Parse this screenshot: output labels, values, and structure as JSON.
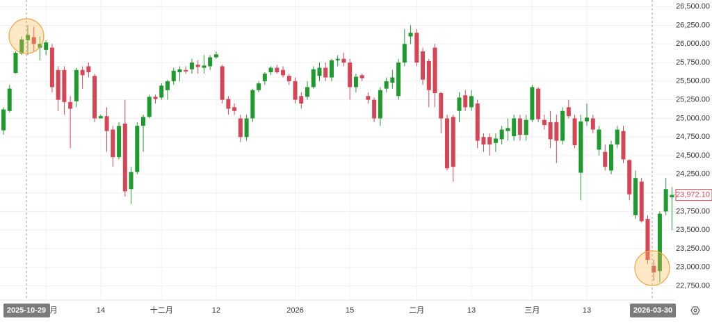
{
  "chart_data": {
    "type": "candlestick",
    "categories": [
      null,
      null,
      null,
      null,
      null,
      null,
      null,
      "十一月",
      null,
      null,
      null,
      null,
      null,
      null,
      null,
      null,
      "14",
      null,
      null,
      null,
      null,
      null,
      null,
      null,
      null,
      null,
      "十二月",
      null,
      null,
      null,
      null,
      null,
      null,
      null,
      null,
      "12",
      null,
      null,
      null,
      null,
      null,
      null,
      null,
      null,
      null,
      null,
      null,
      null,
      "2026",
      null,
      null,
      null,
      null,
      null,
      null,
      null,
      null,
      "15",
      null,
      null,
      null,
      null,
      null,
      null,
      null,
      null,
      null,
      null,
      "二月",
      null,
      null,
      null,
      null,
      null,
      null,
      null,
      null,
      "13",
      null,
      null,
      null,
      null,
      null,
      null,
      null,
      null,
      null,
      "三月",
      null,
      null,
      null,
      null,
      null,
      null,
      null,
      null,
      "13",
      null,
      null,
      null,
      null,
      null,
      null,
      null,
      null,
      null,
      null,
      null,
      null,
      null,
      null
    ],
    "open": [
      24840,
      25100,
      25610,
      25870,
      26050,
      26090,
      25950,
      25920,
      25950,
      25650,
      25650,
      25220,
      25230,
      25650,
      25700,
      25570,
      25000,
      25030,
      24850,
      24480,
      24930,
      24050,
      24280,
      24900,
      25020,
      25290,
      25280,
      25380,
      25500,
      25620,
      25650,
      25660,
      25720,
      25680,
      25700,
      25820,
      25700,
      25260,
      25150,
      25000,
      24750,
      25000,
      25380,
      25500,
      25620,
      25680,
      25650,
      25570,
      25500,
      25300,
      25290,
      25420,
      25570,
      25680,
      25550,
      25780,
      25800,
      25750,
      25420,
      25580,
      25300,
      25250,
      25000,
      25400,
      25480,
      25300,
      25750,
      26100,
      26150,
      25900,
      25770,
      25950,
      25340,
      25000,
      25020,
      25100,
      25310,
      25150,
      25200,
      24750,
      24750,
      24670,
      24720,
      24830,
      24760,
      25000,
      24780,
      24980,
      25400,
      24980,
      24950,
      24950,
      24700,
      25150,
      25000,
      24270,
      24960,
      25000,
      24580,
      24550,
      24300,
      24650,
      24830,
      24440,
      23700,
      24150,
      23650,
      23020,
      22950,
      23750,
      23940
    ],
    "high": [
      25150,
      25450,
      25900,
      26100,
      26250,
      26230,
      26100,
      26050,
      26000,
      25700,
      25700,
      25300,
      25680,
      25700,
      25750,
      25600,
      25050,
      25150,
      24900,
      24950,
      25250,
      24350,
      24950,
      25050,
      25320,
      25320,
      25470,
      25520,
      25680,
      25700,
      25700,
      25800,
      25780,
      25850,
      25850,
      25900,
      25720,
      25300,
      25200,
      25050,
      25050,
      25400,
      25500,
      25620,
      25700,
      25720,
      25700,
      25600,
      25550,
      25350,
      25500,
      25700,
      25750,
      25750,
      25800,
      25850,
      25880,
      25800,
      25600,
      25600,
      25350,
      25280,
      25420,
      25550,
      25650,
      25800,
      26200,
      26250,
      26200,
      25950,
      25800,
      26000,
      25350,
      25050,
      25050,
      25350,
      25380,
      25380,
      25250,
      24800,
      24800,
      24800,
      24900,
      25000,
      25050,
      25050,
      25050,
      25450,
      25420,
      25050,
      25100,
      25050,
      25150,
      25250,
      25050,
      25050,
      25200,
      25050,
      24900,
      24650,
      24700,
      24900,
      24900,
      24450,
      24300,
      24200,
      23700,
      23100,
      23750,
      24200,
      24080
    ],
    "low": [
      24780,
      25080,
      25600,
      25850,
      25850,
      25900,
      25780,
      25850,
      25350,
      25100,
      25050,
      24600,
      25150,
      25400,
      25550,
      24950,
      25000,
      24550,
      24350,
      24450,
      23950,
      23850,
      24250,
      24550,
      25000,
      25200,
      25250,
      25250,
      25450,
      25500,
      25600,
      25600,
      25600,
      25600,
      25650,
      25800,
      25200,
      25050,
      25050,
      24680,
      24700,
      24950,
      25350,
      25450,
      25580,
      25600,
      25550,
      25450,
      25200,
      25130,
      25250,
      25400,
      25500,
      25500,
      25500,
      25700,
      25700,
      25250,
      25350,
      25500,
      25200,
      24950,
      24900,
      25350,
      25400,
      25250,
      25700,
      26000,
      25700,
      25450,
      25150,
      25150,
      24800,
      24300,
      24150,
      24950,
      25100,
      25100,
      24600,
      24550,
      24500,
      24550,
      24650,
      24700,
      24700,
      24700,
      24700,
      24950,
      24950,
      24850,
      24600,
      24400,
      24650,
      25000,
      24600,
      23900,
      24900,
      24800,
      24500,
      24300,
      24250,
      24600,
      24400,
      23900,
      23650,
      23600,
      23050,
      22820,
      22800,
      23700,
      23500
    ],
    "close": [
      25120,
      25400,
      25880,
      26060,
      26120,
      26000,
      26000,
      26020,
      25420,
      25250,
      25220,
      25130,
      25650,
      25580,
      25620,
      25000,
      25030,
      24830,
      24480,
      24900,
      24020,
      24280,
      24900,
      25020,
      25290,
      25260,
      25440,
      25500,
      25640,
      25660,
      25630,
      25750,
      25690,
      25710,
      25820,
      25860,
      25250,
      25130,
      25100,
      24750,
      25000,
      25380,
      25470,
      25600,
      25680,
      25620,
      25580,
      25500,
      25250,
      25200,
      25420,
      25660,
      25680,
      25550,
      25780,
      25800,
      25750,
      25420,
      25560,
      25540,
      25250,
      25000,
      25380,
      25500,
      25550,
      25750,
      26000,
      26150,
      25750,
      25520,
      25380,
      25340,
      25000,
      24330,
      24350,
      25280,
      25150,
      25300,
      24700,
      24650,
      24650,
      24730,
      24850,
      24870,
      25000,
      24780,
      24980,
      25420,
      24990,
      24910,
      24720,
      24700,
      25100,
      25030,
      24640,
      24960,
      25010,
      24850,
      24850,
      24350,
      24650,
      24850,
      24450,
      23980,
      24200,
      23620,
      23100,
      22930,
      23720,
      24050,
      23972.1
    ],
    "up_color": "#1f9a2e",
    "down_color": "#d64555",
    "ylim": [
      22560,
      26590
    ],
    "yticks": [
      {
        "value": 22750,
        "label": "22,750.00"
      },
      {
        "value": 23000,
        "label": "23,000.00"
      },
      {
        "value": 23250,
        "label": "23,250.00"
      },
      {
        "value": 23500,
        "label": "23,500.00"
      },
      {
        "value": 23750,
        "label": "23,750.00"
      },
      {
        "value": 24000,
        "label": "24,000.00"
      },
      {
        "value": 24250,
        "label": "24,250.00"
      },
      {
        "value": 24500,
        "label": "24,500.00"
      },
      {
        "value": 24750,
        "label": "24,750.00"
      },
      {
        "value": 25000,
        "label": "25,000.00"
      },
      {
        "value": 25250,
        "label": "25,250.00"
      },
      {
        "value": 25500,
        "label": "25,500.00"
      },
      {
        "value": 25750,
        "label": "25,750.00"
      },
      {
        "value": 26000,
        "label": "26,000.00"
      },
      {
        "value": 26250,
        "label": "26,250.00"
      },
      {
        "value": 26500,
        "label": "26,500.00"
      }
    ],
    "grid": true,
    "last_price": {
      "value": 23972.1,
      "label": "23,972.10"
    },
    "crosshair_labels": [
      "2025-10-29",
      "2026-03-30"
    ]
  }
}
